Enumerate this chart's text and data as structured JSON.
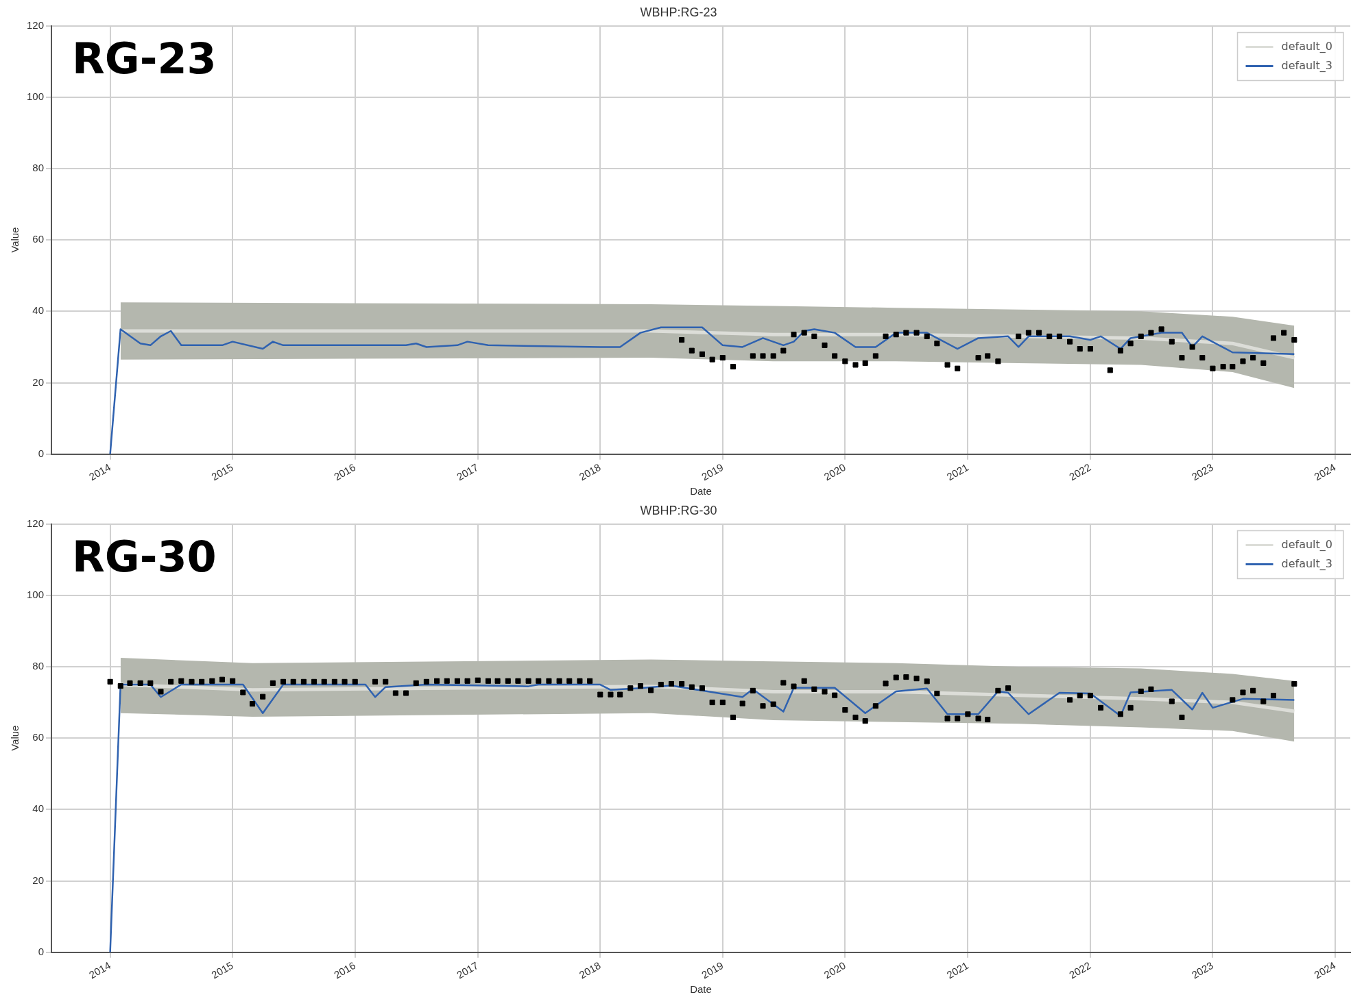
{
  "chart_data": [
    {
      "type": "line",
      "title": "WBHP:RG-23",
      "xlabel": "Date",
      "ylabel": "Value",
      "annotations": [
        "RG-23"
      ],
      "xlim": [
        "2013-07-10",
        "2024-02-15"
      ],
      "xticks": [
        "2014",
        "2015",
        "2016",
        "2017",
        "2018",
        "2019",
        "2020",
        "2021",
        "2022",
        "2023",
        "2024"
      ],
      "ylim": [
        0,
        120
      ],
      "yticks": [
        0,
        20,
        40,
        60,
        80,
        100,
        120
      ],
      "grid": true,
      "legend": "top right",
      "series": [
        {
          "name": "default_0",
          "color": "#dcddd8",
          "x": [
            "2014-02",
            "2018-06",
            "2019-06",
            "2020-06",
            "2021-06",
            "2022-06",
            "2023-03",
            "2023-09"
          ],
          "values": [
            34.5,
            34.5,
            33.5,
            33.5,
            33,
            32.5,
            31,
            27
          ],
          "lower": [
            26.5,
            27,
            26,
            26,
            25.5,
            25,
            23,
            18.5
          ],
          "upper": [
            42.5,
            42,
            41.5,
            41,
            40.5,
            40,
            38.5,
            36
          ]
        },
        {
          "name": "default_3",
          "color": "#2f62b0",
          "x": [
            "2014-01",
            "2014-02",
            "2014-04",
            "2014-05",
            "2014-06",
            "2014-07",
            "2014-08",
            "2014-12",
            "2015-01",
            "2015-04",
            "2015-05",
            "2015-06",
            "2016-06",
            "2016-07",
            "2016-08",
            "2016-11",
            "2016-12",
            "2017-02",
            "2018-01",
            "2018-03",
            "2018-05",
            "2018-07",
            "2018-11",
            "2019-01",
            "2019-03",
            "2019-05",
            "2019-07",
            "2019-08",
            "2019-09",
            "2019-10",
            "2019-12",
            "2020-02",
            "2020-04",
            "2020-06",
            "2020-09",
            "2020-12",
            "2021-02",
            "2021-05",
            "2021-06",
            "2021-07",
            "2021-08",
            "2021-11",
            "2022-01",
            "2022-02",
            "2022-04",
            "2022-05",
            "2022-08",
            "2022-10",
            "2022-11",
            "2022-12",
            "2023-03",
            "2023-09"
          ],
          "values": [
            0,
            35,
            31,
            30.5,
            33,
            34.5,
            30.5,
            30.5,
            31.5,
            29.5,
            31.5,
            30.5,
            30.5,
            31,
            30,
            30.5,
            31.5,
            30.5,
            30,
            30,
            34,
            35.5,
            35.5,
            30.5,
            30,
            32.5,
            30.5,
            31.5,
            34.5,
            35,
            34,
            30,
            30,
            34,
            34,
            29.5,
            32.5,
            33,
            30,
            33,
            33,
            33,
            32,
            33,
            29.5,
            32.5,
            34,
            34,
            30,
            33,
            28.5,
            28
          ]
        },
        {
          "type": "scatter",
          "color": "#000000",
          "marker": "square",
          "x": [
            "2018-09",
            "2018-10",
            "2018-11",
            "2018-12",
            "2019-01",
            "2019-02",
            "2019-04",
            "2019-05",
            "2019-06",
            "2019-07",
            "2019-08",
            "2019-09",
            "2019-10",
            "2019-11",
            "2019-12",
            "2020-01",
            "2020-02",
            "2020-03",
            "2020-04",
            "2020-05",
            "2020-06",
            "2020-07",
            "2020-08",
            "2020-09",
            "2020-10",
            "2020-11",
            "2020-12",
            "2021-02",
            "2021-03",
            "2021-04",
            "2021-06",
            "2021-07",
            "2021-08",
            "2021-09",
            "2021-10",
            "2021-11",
            "2021-12",
            "2022-01",
            "2022-03",
            "2022-04",
            "2022-05",
            "2022-06",
            "2022-07",
            "2022-08",
            "2022-09",
            "2022-10",
            "2022-11",
            "2022-12",
            "2023-01",
            "2023-02",
            "2023-03",
            "2023-04",
            "2023-05",
            "2023-06",
            "2023-07",
            "2023-08",
            "2023-09"
          ],
          "values": [
            32,
            29,
            28,
            26.5,
            27,
            24.5,
            27.5,
            27.5,
            27.5,
            29,
            33.5,
            34,
            33,
            30.5,
            27.5,
            26,
            25,
            25.5,
            27.5,
            33,
            33.5,
            34,
            34,
            33,
            31,
            25,
            24,
            27,
            27.5,
            26,
            33,
            34,
            34,
            33,
            33,
            31.5,
            29.5,
            29.5,
            23.5,
            29,
            31,
            33,
            34,
            35,
            31.5,
            27,
            30,
            27,
            24,
            24.5,
            24.5,
            26,
            27,
            25.5,
            32.5,
            34,
            32
          ]
        }
      ]
    },
    {
      "type": "line",
      "title": "WBHP:RG-30",
      "xlabel": "Date",
      "ylabel": "Value",
      "annotations": [
        "RG-30"
      ],
      "xlim": [
        "2013-07-10",
        "2024-02-15"
      ],
      "xticks": [
        "2014",
        "2015",
        "2016",
        "2017",
        "2018",
        "2019",
        "2020",
        "2021",
        "2022",
        "2023",
        "2024"
      ],
      "ylim": [
        0,
        120
      ],
      "yticks": [
        0,
        20,
        40,
        60,
        80,
        100,
        120
      ],
      "grid": true,
      "legend": "top right",
      "series": [
        {
          "name": "default_0",
          "color": "#dcddd8",
          "x": [
            "2014-02",
            "2015-03",
            "2018-06",
            "2019-06",
            "2020-06",
            "2021-06",
            "2022-06",
            "2023-03",
            "2023-09"
          ],
          "values": [
            75,
            73.5,
            74.5,
            73,
            73,
            72,
            71,
            70,
            67.5
          ],
          "lower": [
            67,
            66,
            67,
            65,
            64.5,
            64,
            63,
            62,
            59
          ],
          "upper": [
            82.5,
            81,
            82,
            81.5,
            81,
            80,
            79.5,
            78,
            76
          ]
        },
        {
          "name": "default_3",
          "color": "#2f62b0",
          "x": [
            "2014-01",
            "2014-02",
            "2014-05",
            "2014-06",
            "2014-08",
            "2015-02",
            "2015-04",
            "2015-06",
            "2016-02",
            "2016-03",
            "2016-04",
            "2016-08",
            "2017-06",
            "2017-07",
            "2018-01",
            "2018-02",
            "2018-05",
            "2018-08",
            "2019-03",
            "2019-04",
            "2019-07",
            "2019-08",
            "2019-12",
            "2020-03",
            "2020-06",
            "2020-09",
            "2020-11",
            "2021-02",
            "2021-04",
            "2021-05",
            "2021-07",
            "2021-10",
            "2022-01",
            "2022-04",
            "2022-05",
            "2022-09",
            "2022-11",
            "2022-12",
            "2023-01",
            "2023-04",
            "2023-09"
          ],
          "values": [
            0,
            75,
            75,
            71.5,
            75,
            75,
            67,
            75,
            75,
            71.5,
            74.3,
            75,
            74.5,
            75,
            75,
            73.5,
            74,
            74.7,
            71.5,
            73.7,
            67.4,
            74.1,
            74.1,
            67,
            73.1,
            73.9,
            66.7,
            66.7,
            73.1,
            72.7,
            66.7,
            72.7,
            72.5,
            66.2,
            72.8,
            73.5,
            68,
            72.7,
            68.5,
            71,
            70.7
          ]
        },
        {
          "type": "scatter",
          "color": "#000000",
          "marker": "square",
          "x": [
            "2014-01",
            "2014-02",
            "2014-03",
            "2014-04",
            "2014-05",
            "2014-06",
            "2014-07",
            "2014-08",
            "2014-09",
            "2014-10",
            "2014-11",
            "2014-12",
            "2015-01",
            "2015-02",
            "2015-03",
            "2015-04",
            "2015-05",
            "2015-06",
            "2015-07",
            "2015-08",
            "2015-09",
            "2015-10",
            "2015-11",
            "2015-12",
            "2016-01",
            "2016-03",
            "2016-04",
            "2016-05",
            "2016-06",
            "2016-07",
            "2016-08",
            "2016-09",
            "2016-10",
            "2016-11",
            "2016-12",
            "2017-01",
            "2017-02",
            "2017-03",
            "2017-04",
            "2017-05",
            "2017-06",
            "2017-07",
            "2017-08",
            "2017-09",
            "2017-10",
            "2017-11",
            "2017-12",
            "2018-01",
            "2018-02",
            "2018-03",
            "2018-04",
            "2018-05",
            "2018-06",
            "2018-07",
            "2018-08",
            "2018-09",
            "2018-10",
            "2018-11",
            "2018-12",
            "2019-01",
            "2019-02",
            "2019-03",
            "2019-04",
            "2019-05",
            "2019-06",
            "2019-07",
            "2019-08",
            "2019-09",
            "2019-10",
            "2019-11",
            "2019-12",
            "2020-01",
            "2020-02",
            "2020-03",
            "2020-04",
            "2020-05",
            "2020-06",
            "2020-07",
            "2020-08",
            "2020-09",
            "2020-10",
            "2020-11",
            "2020-12",
            "2021-01",
            "2021-02",
            "2021-03",
            "2021-04",
            "2021-05",
            "2021-11",
            "2021-12",
            "2022-01",
            "2022-02",
            "2022-04",
            "2022-05",
            "2022-06",
            "2022-07",
            "2022-09",
            "2022-10",
            "2023-03",
            "2023-04",
            "2023-05",
            "2023-06",
            "2023-07",
            "2023-09"
          ],
          "values": [
            75.8,
            74.6,
            75.4,
            75.4,
            75.4,
            73,
            75.8,
            76,
            75.8,
            75.8,
            76,
            76.4,
            76,
            72.8,
            69.6,
            71.6,
            75.4,
            75.8,
            75.8,
            75.8,
            75.8,
            75.8,
            75.8,
            75.8,
            75.8,
            75.8,
            75.8,
            72.6,
            72.6,
            75.4,
            75.8,
            76,
            76,
            76,
            76,
            76.2,
            76,
            76,
            76,
            76,
            76,
            76,
            76,
            76,
            76,
            76,
            76,
            72.2,
            72.2,
            72.2,
            74,
            74.6,
            73.4,
            75,
            75.2,
            75.2,
            74.3,
            74,
            70,
            70,
            65.8,
            69.7,
            73.3,
            69,
            69.5,
            75.5,
            74.5,
            76,
            73.7,
            73,
            72,
            67.9,
            65.8,
            64.8,
            69,
            75.3,
            77,
            77.1,
            76.7,
            75.9,
            72.5,
            65.5,
            65.5,
            66.7,
            65.5,
            65.2,
            73.3,
            74,
            70.7,
            71.9,
            71.9,
            68.5,
            66.7,
            68.5,
            73.1,
            73.7,
            70.3,
            65.8,
            70.7,
            72.8,
            73.3,
            70.3,
            71.9,
            75.2
          ]
        }
      ]
    }
  ]
}
